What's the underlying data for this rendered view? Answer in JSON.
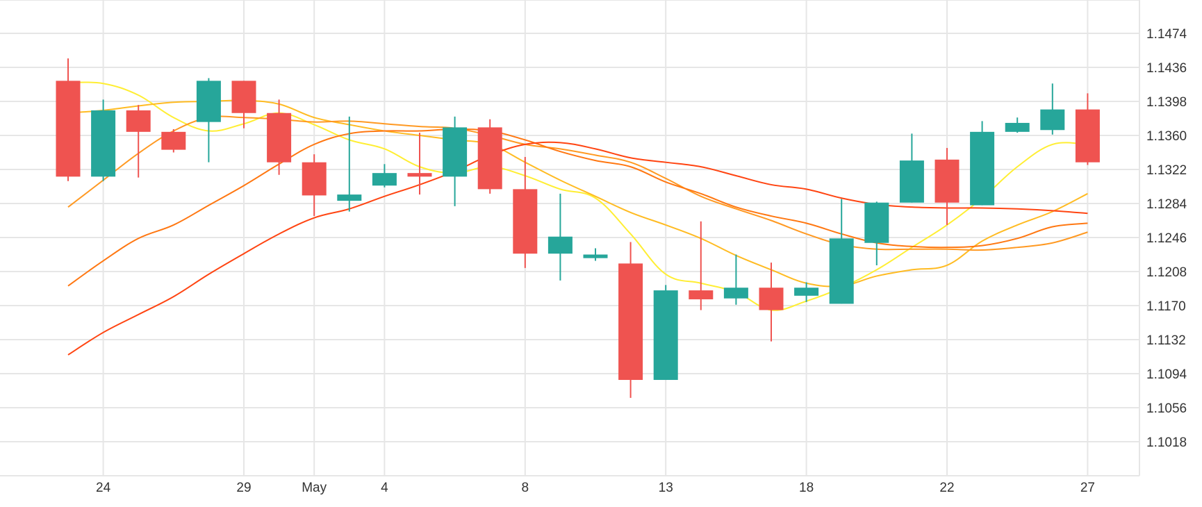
{
  "colors": {
    "up": "#26a69a",
    "down": "#ef5350",
    "grid": "#e6e6e6",
    "text": "#333333",
    "ma_colors": [
      "#ffee33",
      "#ffbb22",
      "#ff9922",
      "#ff7711",
      "#ff4411"
    ]
  },
  "chart_data": {
    "type": "candlestick",
    "ylim": [
      1.0985,
      1.1512
    ],
    "y_ticks": [
      "1.1474",
      "1.1436",
      "1.1398",
      "1.1360",
      "1.1322",
      "1.1284",
      "1.1246",
      "1.1208",
      "1.1170",
      "1.1132",
      "1.1094",
      "1.1056",
      "1.1018"
    ],
    "x_ticks": [
      {
        "index": 1,
        "label": "24"
      },
      {
        "index": 5,
        "label": "29"
      },
      {
        "index": 7,
        "label": "May"
      },
      {
        "index": 9,
        "label": "4"
      },
      {
        "index": 13,
        "label": "8"
      },
      {
        "index": 17,
        "label": "13"
      },
      {
        "index": 21,
        "label": "18"
      },
      {
        "index": 25,
        "label": "22"
      },
      {
        "index": 29,
        "label": "27"
      }
    ],
    "candles": [
      {
        "open": 1.1421,
        "high": 1.1446,
        "low": 1.1309,
        "close": 1.1314
      },
      {
        "open": 1.1314,
        "high": 1.14,
        "low": 1.1309,
        "close": 1.1388
      },
      {
        "open": 1.1388,
        "high": 1.1394,
        "low": 1.1313,
        "close": 1.1364
      },
      {
        "open": 1.1364,
        "high": 1.1367,
        "low": 1.1341,
        "close": 1.1344
      },
      {
        "open": 1.1375,
        "high": 1.1424,
        "low": 1.133,
        "close": 1.1421
      },
      {
        "open": 1.1421,
        "high": 1.1421,
        "low": 1.1368,
        "close": 1.1385
      },
      {
        "open": 1.1385,
        "high": 1.14,
        "low": 1.1316,
        "close": 1.133
      },
      {
        "open": 1.133,
        "high": 1.1339,
        "low": 1.127,
        "close": 1.1293
      },
      {
        "open": 1.1287,
        "high": 1.1381,
        "low": 1.1275,
        "close": 1.1294
      },
      {
        "open": 1.1304,
        "high": 1.1328,
        "low": 1.1302,
        "close": 1.1318
      },
      {
        "open": 1.1318,
        "high": 1.1363,
        "low": 1.1294,
        "close": 1.1314
      },
      {
        "open": 1.1314,
        "high": 1.1381,
        "low": 1.1281,
        "close": 1.1369
      },
      {
        "open": 1.1369,
        "high": 1.1378,
        "low": 1.1295,
        "close": 1.13
      },
      {
        "open": 1.13,
        "high": 1.1336,
        "low": 1.1212,
        "close": 1.1228
      },
      {
        "open": 1.1228,
        "high": 1.1295,
        "low": 1.1198,
        "close": 1.1247
      },
      {
        "open": 1.1223,
        "high": 1.1234,
        "low": 1.122,
        "close": 1.1227
      },
      {
        "open": 1.1217,
        "high": 1.1241,
        "low": 1.1067,
        "close": 1.1087
      },
      {
        "open": 1.1087,
        "high": 1.1193,
        "low": 1.1087,
        "close": 1.1187
      },
      {
        "open": 1.1187,
        "high": 1.1264,
        "low": 1.1165,
        "close": 1.1177
      },
      {
        "open": 1.1178,
        "high": 1.1227,
        "low": 1.1171,
        "close": 1.119
      },
      {
        "open": 1.119,
        "high": 1.1218,
        "low": 1.113,
        "close": 1.1165
      },
      {
        "open": 1.1181,
        "high": 1.1196,
        "low": 1.1174,
        "close": 1.119
      },
      {
        "open": 1.1172,
        "high": 1.1289,
        "low": 1.1172,
        "close": 1.1245
      },
      {
        "open": 1.124,
        "high": 1.1286,
        "low": 1.1215,
        "close": 1.1285
      },
      {
        "open": 1.1285,
        "high": 1.1362,
        "low": 1.1285,
        "close": 1.1332
      },
      {
        "open": 1.1333,
        "high": 1.1346,
        "low": 1.126,
        "close": 1.1285
      },
      {
        "open": 1.1282,
        "high": 1.1376,
        "low": 1.1282,
        "close": 1.1364
      },
      {
        "open": 1.1364,
        "high": 1.138,
        "low": 1.1363,
        "close": 1.1374
      },
      {
        "open": 1.1366,
        "high": 1.1418,
        "low": 1.1361,
        "close": 1.1389
      },
      {
        "open": 1.1389,
        "high": 1.1407,
        "low": 1.1327,
        "close": 1.133
      }
    ],
    "series": [
      {
        "type": "line",
        "values": [
          1.1419,
          1.1418,
          1.1405,
          1.138,
          1.1365,
          1.1373,
          1.1385,
          1.1372,
          1.1355,
          1.1345,
          1.1325,
          1.1318,
          1.1325,
          1.1315,
          1.13,
          1.129,
          1.125,
          1.1205,
          1.1195,
          1.1185,
          1.1165,
          1.1175,
          1.119,
          1.121,
          1.1235,
          1.126,
          1.129,
          1.1325,
          1.135,
          1.135
        ]
      },
      {
        "type": "line",
        "values": [
          1.1385,
          1.1388,
          1.1393,
          1.1397,
          1.1398,
          1.1399,
          1.1395,
          1.138,
          1.1372,
          1.1365,
          1.136,
          1.1355,
          1.135,
          1.133,
          1.131,
          1.1292,
          1.1274,
          1.126,
          1.1245,
          1.1226,
          1.121,
          1.1195,
          1.1192,
          1.1203,
          1.121,
          1.1215,
          1.1242,
          1.126,
          1.1275,
          1.1295
        ]
      },
      {
        "type": "line",
        "values": [
          1.128,
          1.131,
          1.134,
          1.1365,
          1.138,
          1.138,
          1.1378,
          1.1375,
          1.1376,
          1.1373,
          1.137,
          1.1368,
          1.136,
          1.135,
          1.1345,
          1.1338,
          1.133,
          1.1312,
          1.1292,
          1.1278,
          1.1265,
          1.125,
          1.1238,
          1.1233,
          1.1233,
          1.1233,
          1.1232,
          1.1235,
          1.124,
          1.1252
        ]
      },
      {
        "type": "line",
        "values": [
          1.1192,
          1.122,
          1.1245,
          1.126,
          1.1282,
          1.1304,
          1.1328,
          1.135,
          1.1362,
          1.1365,
          1.1365,
          1.1367,
          1.1365,
          1.1355,
          1.1342,
          1.1332,
          1.1325,
          1.1308,
          1.1295,
          1.128,
          1.127,
          1.1262,
          1.125,
          1.124,
          1.1236,
          1.1235,
          1.1237,
          1.1245,
          1.1258,
          1.1262
        ]
      },
      {
        "type": "line",
        "values": [
          1.1115,
          1.114,
          1.116,
          1.118,
          1.1205,
          1.1228,
          1.125,
          1.1268,
          1.1278,
          1.1292,
          1.1305,
          1.132,
          1.1338,
          1.135,
          1.1352,
          1.1345,
          1.1335,
          1.133,
          1.1325,
          1.1315,
          1.1305,
          1.13,
          1.129,
          1.1283,
          1.128,
          1.1279,
          1.1279,
          1.1278,
          1.1276,
          1.1273
        ]
      }
    ]
  }
}
